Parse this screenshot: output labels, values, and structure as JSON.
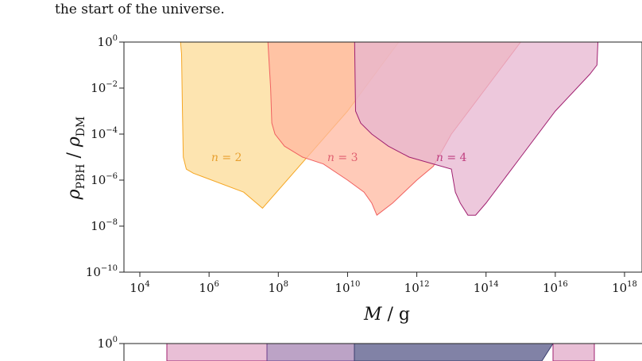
{
  "caption": "the start of the universe.",
  "chart_data": [
    {
      "type": "area",
      "xlabel": "M / g",
      "ylabel": "ρPBH / ρDM",
      "x_scale": "log10",
      "y_scale": "log10",
      "xlim": [
        1000.0,
        1e+18
      ],
      "ylim": [
        1e-10,
        1.0
      ],
      "xticks": [
        10000.0,
        1000000.0,
        100000000.0,
        10000000000.0,
        1000000000000.0,
        100000000000000.0,
        1e+16,
        1e+18
      ],
      "yticks": [
        1e-10,
        1e-08,
        1e-06,
        0.0001,
        0.01,
        1.0
      ],
      "grid": false,
      "series": [
        {
          "name": "n = 2",
          "fill": "#fde4b0",
          "stroke": "#f5a623",
          "label_text_color": "#e8a030",
          "label_at": {
            "x": 3200000.0,
            "y": 1e-05
          },
          "boundary": [
            [
              150000.0,
              1.0
            ],
            [
              160000.0,
              0.3
            ],
            [
              170000.0,
              0.001
            ],
            [
              180000.0,
              1e-05
            ],
            [
              220000.0,
              3e-06
            ],
            [
              350000.0,
              2e-06
            ],
            [
              10000000.0,
              3e-07
            ],
            [
              35000000.0,
              6e-08
            ],
            [
              10000000000.0,
              0.001
            ],
            [
              300000000000.0,
              1.0
            ]
          ]
        },
        {
          "name": "n = 3",
          "fill": "#ffb8a0",
          "stroke": "#f06060",
          "label_text_color": "#e06070",
          "label_at": {
            "x": 7200000000.0,
            "y": 1e-05
          },
          "boundary": [
            [
              50000000.0,
              1.0
            ],
            [
              60000000.0,
              0.01
            ],
            [
              65000000.0,
              0.0003
            ],
            [
              80000000.0,
              0.0001
            ],
            [
              150000000.0,
              3e-05
            ],
            [
              500000000.0,
              1e-05
            ],
            [
              2000000000.0,
              5e-06
            ],
            [
              10000000000.0,
              1e-06
            ],
            [
              30000000000.0,
              3e-07
            ],
            [
              50000000000.0,
              1e-07
            ],
            [
              70000000000.0,
              3e-08
            ],
            [
              200000000000.0,
              1e-07
            ],
            [
              1000000000000.0,
              1e-06
            ],
            [
              3000000000000.0,
              4e-06
            ],
            [
              10000000000000.0,
              0.0001
            ],
            [
              1000000000000000.0,
              1.0
            ]
          ]
        },
        {
          "name": "n = 4",
          "fill": "#e7b5d0",
          "stroke": "#a02070",
          "label_text_color": "#c04080",
          "label_at": {
            "x": 10000000000000.0,
            "y": 1e-05
          },
          "boundary": [
            [
              16000000000.0,
              1.0
            ],
            [
              17000000000.0,
              0.001
            ],
            [
              24000000000.0,
              0.0003
            ],
            [
              50000000000.0,
              0.0001
            ],
            [
              150000000000.0,
              3e-05
            ],
            [
              600000000000.0,
              1e-05
            ],
            [
              10000000000000.0,
              3e-06
            ],
            [
              13000000000000.0,
              3e-07
            ],
            [
              18000000000000.0,
              1e-07
            ],
            [
              30000000000000.0,
              3e-08
            ],
            [
              50000000000000.0,
              3e-08
            ],
            [
              100000000000000.0,
              1e-07
            ],
            [
              1000000000000000.0,
              1e-05
            ],
            [
              1e+16,
              0.001
            ],
            [
              1e+17,
              0.04
            ],
            [
              1.6e+17,
              0.1
            ],
            [
              1.7e+17,
              1.0
            ]
          ]
        }
      ]
    },
    {
      "type": "area",
      "partial": true,
      "ylim_top": 1.0,
      "ytick_top_label": "10",
      "ytick_top_exp": "0",
      "bands": [
        {
          "fill": "#e9bfd6",
          "stroke": "#a02070",
          "x_from": 210,
          "x_to": 336
        },
        {
          "fill": "#bca3c6",
          "stroke": "#6a3d8a",
          "x_from": 336,
          "x_to": 446
        },
        {
          "fill": "#8182a6",
          "stroke": "#3b3e6e",
          "x_from": 446,
          "x_to": 696
        },
        {
          "fill": "#e9bfd6",
          "stroke": "#a02070",
          "x_from": 696,
          "x_to": 748
        }
      ]
    }
  ],
  "tick_base": "10",
  "xtick_exps": [
    "4",
    "6",
    "8",
    "10",
    "12",
    "14",
    "16",
    "18"
  ],
  "ytick_exps": [
    "0",
    "−2",
    "−4",
    "−6",
    "−8",
    "−10"
  ],
  "labels": {
    "ylabel_main": "ρ",
    "ylabel_sub1": "PBH",
    "ylabel_slash": " / ",
    "ylabel_sub2": "DM",
    "xlabel_main": "M",
    "xlabel_rest": " / g"
  },
  "region_labels": [
    {
      "n": "n",
      "eq": " = 2"
    },
    {
      "n": "n",
      "eq": " = 3"
    },
    {
      "n": "n",
      "eq": " = 4"
    }
  ]
}
